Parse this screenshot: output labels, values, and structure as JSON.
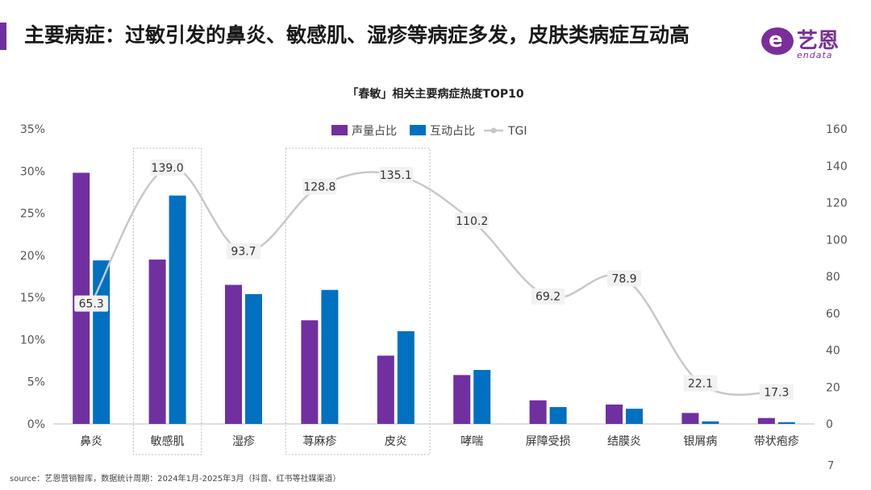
{
  "header": {
    "title": "主要病症：过敏引发的鼻炎、敏感肌、湿疹等病症多发，皮肤类病症互动高",
    "logo_cn": "艺恩",
    "logo_en": "endata",
    "logo_badge": "e"
  },
  "colors": {
    "accent": "#7030a0",
    "series1": "#7030a0",
    "series2": "#0070c0",
    "tgi_line": "#c8c8c8"
  },
  "chart_data": {
    "type": "bar",
    "title": "「春敏」相关主要病症热度TOP10",
    "categories": [
      "鼻炎",
      "敏感肌",
      "湿疹",
      "荨麻疹",
      "皮炎",
      "哮喘",
      "屏障受损",
      "结膜炎",
      "银屑病",
      "带状疱疹"
    ],
    "series": [
      {
        "name": "声量占比",
        "axis": "left",
        "values": [
          29.8,
          19.5,
          16.5,
          12.3,
          8.1,
          5.8,
          2.8,
          2.3,
          1.3,
          0.7
        ]
      },
      {
        "name": "互动占比",
        "axis": "left",
        "values": [
          19.4,
          27.1,
          15.4,
          15.9,
          11.0,
          6.4,
          2.0,
          1.8,
          0.3,
          0.2
        ]
      },
      {
        "name": "TGI",
        "axis": "right",
        "type": "line",
        "values": [
          65.3,
          139.0,
          93.7,
          128.8,
          135.1,
          110.2,
          69.2,
          78.9,
          22.1,
          17.3
        ]
      }
    ],
    "y_left": {
      "min": 0,
      "max": 35,
      "step": 5,
      "tick_labels": [
        "0%",
        "5%",
        "10%",
        "15%",
        "20%",
        "25%",
        "30%",
        "35%"
      ]
    },
    "y_right": {
      "min": 0,
      "max": 160,
      "step": 20,
      "tick_labels": [
        "0",
        "20",
        "40",
        "60",
        "80",
        "100",
        "120",
        "140",
        "160"
      ]
    },
    "highlighted_categories": [
      "敏感肌",
      "荨麻疹",
      "皮炎"
    ],
    "legend_position": "top-center",
    "grid": false
  },
  "footer": {
    "source": "source：艺恩营销智库，数据统计周期：2024年1月-2025年3月（抖音、红书等社媒渠道）",
    "page_number": "7"
  }
}
